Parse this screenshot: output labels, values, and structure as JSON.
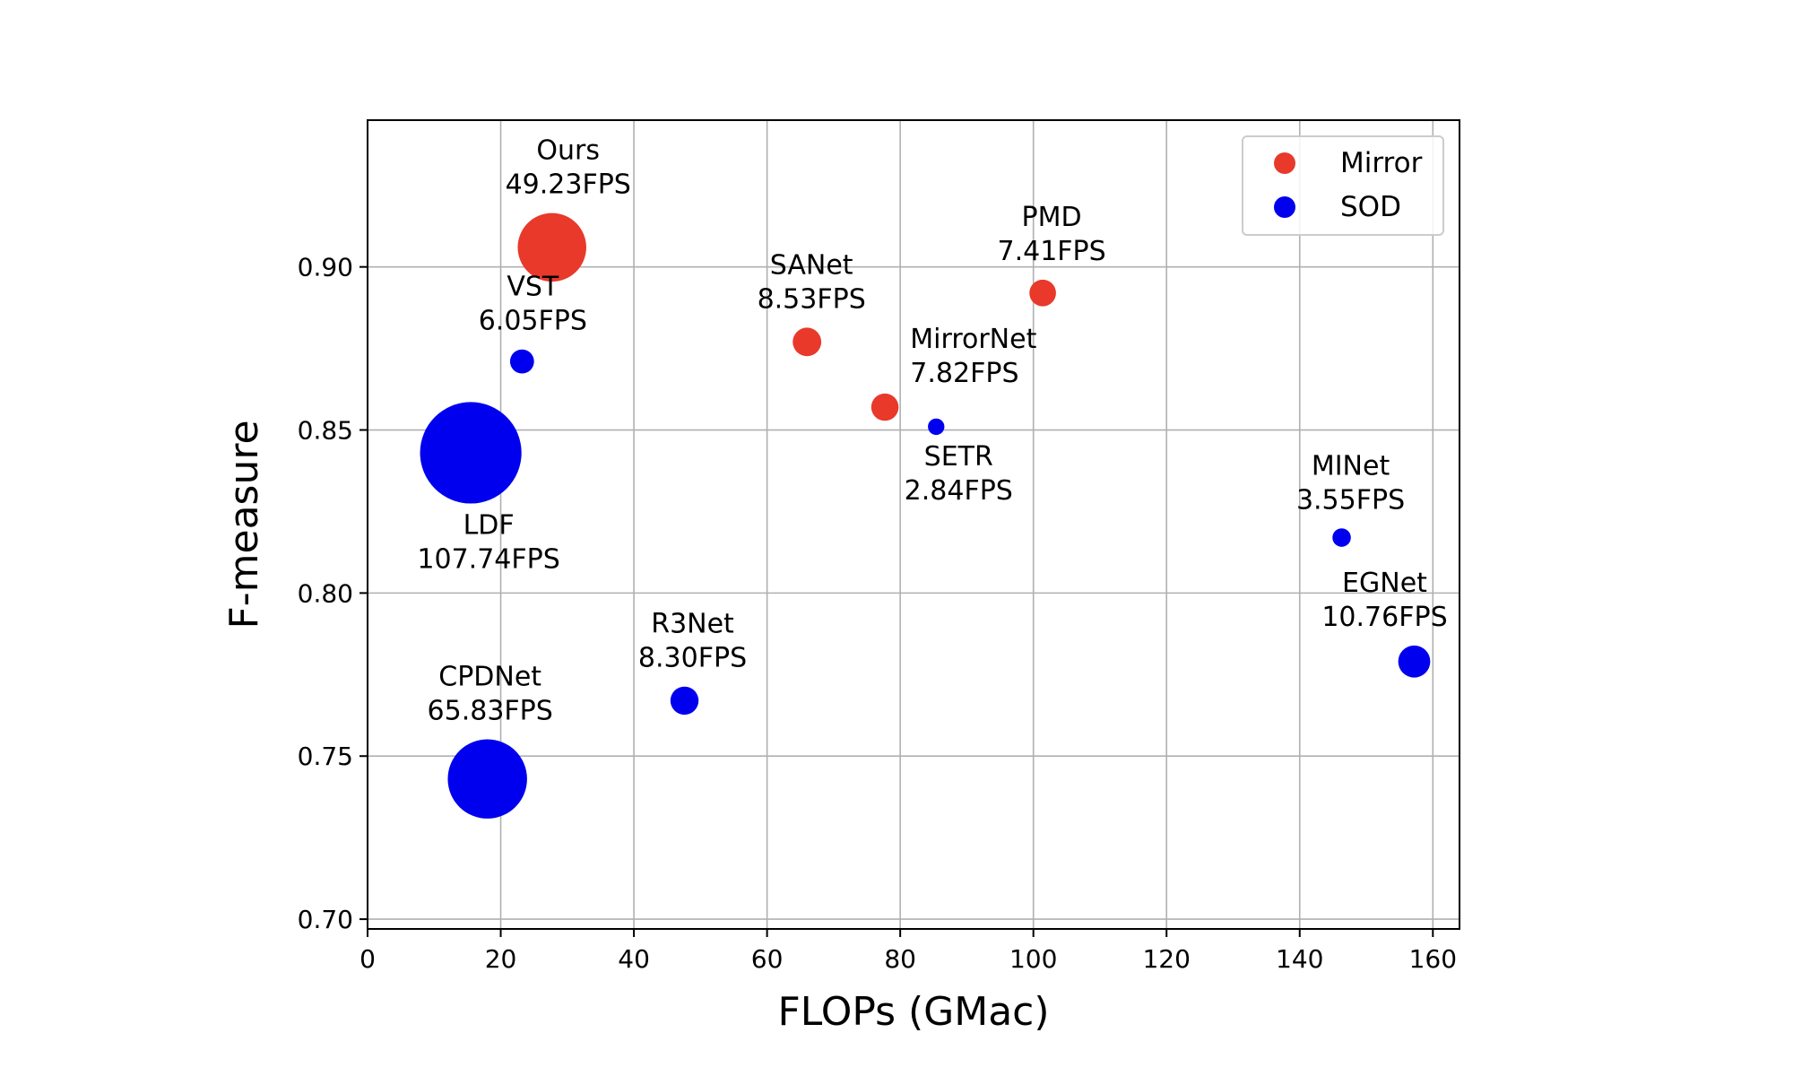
{
  "chart_data": {
    "type": "scatter",
    "title": "",
    "xlabel": "FLOPs (GMac)",
    "ylabel": "F-measure",
    "xlim": [
      0,
      164
    ],
    "ylim": [
      0.697,
      0.945
    ],
    "xticks": [
      "0",
      "20",
      "40",
      "60",
      "80",
      "100",
      "120",
      "140",
      "160"
    ],
    "yticks": [
      "0.70",
      "0.75",
      "0.80",
      "0.85",
      "0.90"
    ],
    "grid": true,
    "legend": {
      "placement": "top-right",
      "entries": [
        {
          "name": "Mirror",
          "color": "#e8392b"
        },
        {
          "name": "SOD",
          "color": "#0000ee"
        }
      ]
    },
    "points": [
      {
        "model": "Ours",
        "fps": "49.23FPS",
        "fps_value": 49.23,
        "x": 27.7,
        "y": 0.906,
        "group": "Mirror"
      },
      {
        "model": "PMD",
        "fps": "7.41FPS",
        "fps_value": 7.41,
        "x": 101.4,
        "y": 0.892,
        "group": "Mirror"
      },
      {
        "model": "SANet",
        "fps": "8.53FPS",
        "fps_value": 8.53,
        "x": 66.0,
        "y": 0.877,
        "group": "Mirror"
      },
      {
        "model": "MirrorNet",
        "fps": "7.82FPS",
        "fps_value": 7.82,
        "x": 77.7,
        "y": 0.857,
        "group": "Mirror"
      },
      {
        "model": "VST",
        "fps": "6.05FPS",
        "fps_value": 6.05,
        "x": 23.2,
        "y": 0.871,
        "group": "SOD"
      },
      {
        "model": "LDF",
        "fps": "107.74FPS",
        "fps_value": 107.74,
        "x": 15.5,
        "y": 0.843,
        "group": "SOD"
      },
      {
        "model": "SETR",
        "fps": "2.84FPS",
        "fps_value": 2.84,
        "x": 85.4,
        "y": 0.851,
        "group": "SOD"
      },
      {
        "model": "MINet",
        "fps": "3.55FPS",
        "fps_value": 3.55,
        "x": 146.3,
        "y": 0.817,
        "group": "SOD"
      },
      {
        "model": "EGNet",
        "fps": "10.76FPS",
        "fps_value": 10.76,
        "x": 157.2,
        "y": 0.779,
        "group": "SOD"
      },
      {
        "model": "R3Net",
        "fps": "8.30FPS",
        "fps_value": 8.3,
        "x": 47.6,
        "y": 0.767,
        "group": "SOD"
      },
      {
        "model": "CPDNet",
        "fps": "65.83FPS",
        "fps_value": 65.83,
        "x": 18.0,
        "y": 0.743,
        "group": "SOD"
      }
    ]
  }
}
